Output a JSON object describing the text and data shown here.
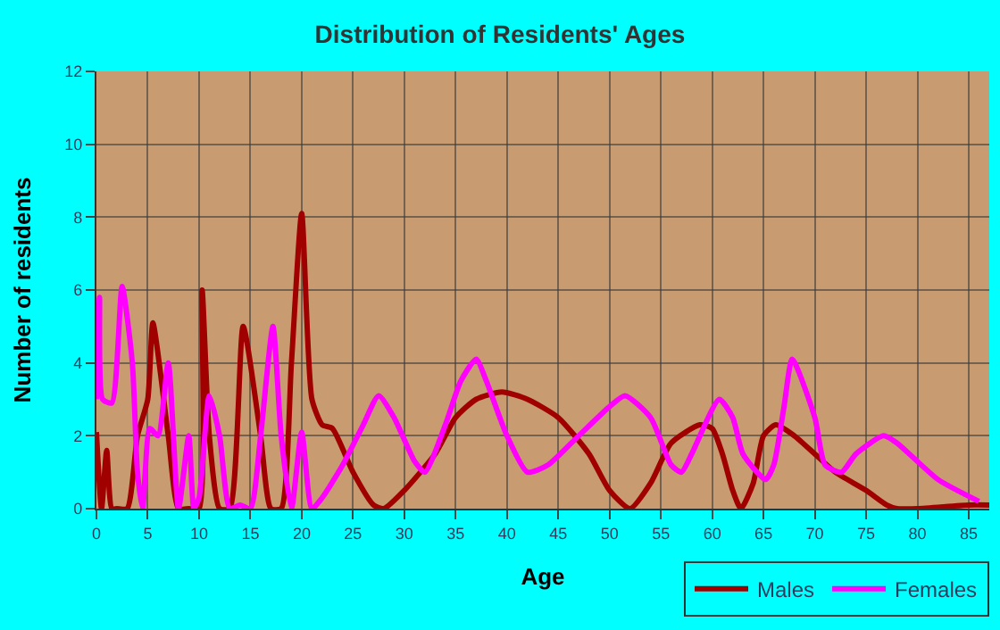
{
  "chart_data": {
    "type": "line",
    "title": "Distribution of Residents' Ages",
    "xlabel": "Age",
    "ylabel": "Number of residents",
    "xlim": [
      0,
      87
    ],
    "xticks": [
      0,
      5,
      10,
      15,
      20,
      25,
      30,
      35,
      40,
      45,
      50,
      55,
      60,
      65,
      70,
      75,
      80,
      85
    ],
    "ylim": [
      0,
      12
    ],
    "yticks": [
      0,
      2,
      4,
      6,
      8,
      10,
      12
    ],
    "grid": true,
    "legend": "bottom right",
    "marker": "none",
    "line_style": "solid",
    "series": [
      {
        "name": "Males",
        "color": "#a00000",
        "x": [
          0,
          0.5,
          1,
          1.5,
          2,
          3,
          4,
          5,
          5.5,
          7,
          8,
          9,
          10,
          10.3,
          11,
          12,
          13,
          14.3,
          16,
          17,
          18,
          19,
          20,
          21,
          22,
          23,
          25,
          27,
          28,
          30,
          33,
          35,
          37,
          39.5,
          42,
          45,
          48,
          50,
          52,
          54,
          56,
          58.8,
          60,
          61,
          62,
          62.8,
          64,
          65,
          66.2,
          68,
          70,
          72,
          75,
          77,
          78,
          80,
          85,
          87
        ],
        "values": [
          2.1,
          0,
          1.6,
          0,
          0,
          0,
          2,
          3,
          5.1,
          2,
          0,
          0,
          0,
          6,
          2,
          0,
          0,
          5,
          2,
          0,
          0,
          4,
          8.1,
          3,
          2.3,
          2.2,
          1,
          0.1,
          0,
          0.5,
          1.5,
          2.5,
          3,
          3.2,
          3,
          2.5,
          1.5,
          0.5,
          0,
          0.7,
          1.8,
          2.3,
          2.2,
          1.5,
          0.5,
          0,
          0.7,
          2,
          2.3,
          2,
          1.5,
          1,
          0.5,
          0.1,
          0,
          0,
          0.1,
          0.1
        ]
      },
      {
        "name": "Females",
        "color": "#ff00ff",
        "x": [
          0,
          0.3,
          0.6,
          1.5,
          2.5,
          3.5,
          4,
          4.5,
          5.2,
          6,
          7,
          8,
          9,
          9.5,
          10,
          11,
          12,
          13,
          14,
          15,
          16,
          17.2,
          18,
          19,
          20,
          21,
          22,
          24,
          26,
          27.5,
          29,
          31,
          32,
          34,
          35.5,
          37,
          38,
          40,
          42,
          44,
          47,
          50,
          51.5,
          54,
          56,
          57,
          58,
          60.7,
          62,
          63,
          65.2,
          66,
          67,
          67.8,
          70,
          71,
          72.6,
          74,
          76.7,
          78,
          82,
          86
        ],
        "values": [
          3,
          5.8,
          3,
          2.9,
          6.1,
          4,
          1,
          0,
          2.2,
          2,
          4,
          0,
          2,
          0,
          0.3,
          3.1,
          2,
          0,
          0.1,
          0,
          2,
          5,
          2,
          0,
          2.1,
          0,
          0.3,
          1.2,
          2.3,
          3.1,
          2.5,
          1.3,
          1,
          2.3,
          3.5,
          4.1,
          3.5,
          2,
          1,
          1.2,
          2,
          2.8,
          3.1,
          2.5,
          1.2,
          1,
          1.5,
          3,
          2.5,
          1.5,
          0.8,
          1.2,
          2.8,
          4.1,
          2.5,
          1.2,
          1,
          1.5,
          2,
          1.8,
          0.8,
          0.2
        ]
      }
    ]
  }
}
